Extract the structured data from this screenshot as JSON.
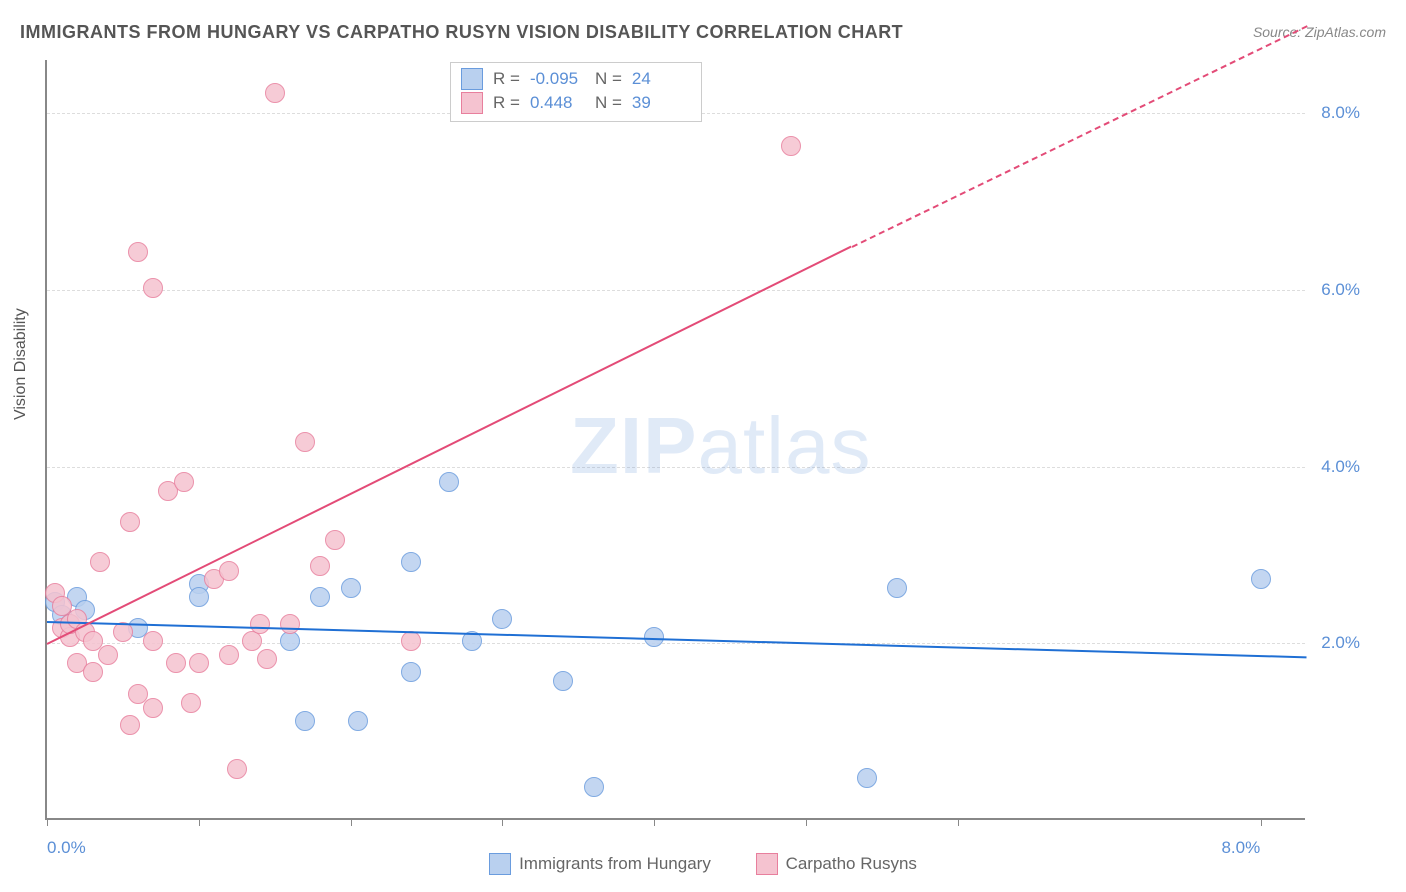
{
  "title": "IMMIGRANTS FROM HUNGARY VS CARPATHO RUSYN VISION DISABILITY CORRELATION CHART",
  "source": "Source: ZipAtlas.com",
  "y_axis_label": "Vision Disability",
  "watermark_bold": "ZIP",
  "watermark_light": "atlas",
  "chart": {
    "type": "scatter",
    "background_color": "#ffffff",
    "grid_color": "#dddddd",
    "axis_color": "#888888",
    "tick_label_color": "#5b8fd6",
    "xlim": [
      0,
      8.3
    ],
    "ylim": [
      0,
      8.6
    ],
    "y_ticks": [
      {
        "v": 2.0,
        "label": "2.0%"
      },
      {
        "v": 4.0,
        "label": "4.0%"
      },
      {
        "v": 6.0,
        "label": "6.0%"
      },
      {
        "v": 8.0,
        "label": "8.0%"
      }
    ],
    "x_ticks": [
      {
        "v": 0.0,
        "label": "0.0%"
      },
      {
        "v": 1.0,
        "label": ""
      },
      {
        "v": 2.0,
        "label": ""
      },
      {
        "v": 3.0,
        "label": ""
      },
      {
        "v": 4.0,
        "label": ""
      },
      {
        "v": 5.0,
        "label": ""
      },
      {
        "v": 6.0,
        "label": ""
      },
      {
        "v": 8.0,
        "label": "8.0%"
      }
    ],
    "point_radius": 10,
    "series": [
      {
        "name": "Immigrants from Hungary",
        "fill": "#b9d0ef",
        "stroke": "#6a9cde",
        "trend_color": "#1f6fd4",
        "trend": {
          "x1": 0.0,
          "y1": 2.25,
          "x2": 8.3,
          "y2": 1.85,
          "dashed_after_x": 8.3
        },
        "r_value": "-0.095",
        "n_value": "24",
        "points": [
          [
            0.05,
            2.45
          ],
          [
            0.1,
            2.3
          ],
          [
            0.15,
            2.2
          ],
          [
            0.2,
            2.5
          ],
          [
            0.25,
            2.35
          ],
          [
            0.6,
            2.15
          ],
          [
            1.0,
            2.65
          ],
          [
            1.0,
            2.5
          ],
          [
            1.6,
            2.0
          ],
          [
            1.7,
            1.1
          ],
          [
            1.8,
            2.5
          ],
          [
            2.0,
            2.6
          ],
          [
            2.05,
            1.1
          ],
          [
            2.4,
            2.9
          ],
          [
            2.4,
            1.65
          ],
          [
            2.65,
            3.8
          ],
          [
            2.8,
            2.0
          ],
          [
            3.0,
            2.25
          ],
          [
            3.4,
            1.55
          ],
          [
            3.6,
            0.35
          ],
          [
            4.0,
            2.05
          ],
          [
            5.4,
            0.45
          ],
          [
            5.6,
            2.6
          ],
          [
            8.0,
            2.7
          ]
        ]
      },
      {
        "name": "Carpatho Rusyns",
        "fill": "#f5c3d0",
        "stroke": "#e87f9d",
        "trend_color": "#e34b77",
        "trend": {
          "x1": 0.0,
          "y1": 2.0,
          "x2": 5.3,
          "y2": 6.5,
          "dashed_after_x": 5.3,
          "x3": 8.3,
          "y3": 9.0
        },
        "r_value": "0.448",
        "n_value": "39",
        "points": [
          [
            0.05,
            2.55
          ],
          [
            0.1,
            2.4
          ],
          [
            0.1,
            2.15
          ],
          [
            0.15,
            2.05
          ],
          [
            0.15,
            2.2
          ],
          [
            0.2,
            1.75
          ],
          [
            0.2,
            2.25
          ],
          [
            0.25,
            2.1
          ],
          [
            0.3,
            2.0
          ],
          [
            0.3,
            1.65
          ],
          [
            0.35,
            2.9
          ],
          [
            0.4,
            1.85
          ],
          [
            0.5,
            2.1
          ],
          [
            0.55,
            3.35
          ],
          [
            0.55,
            1.05
          ],
          [
            0.6,
            1.4
          ],
          [
            0.6,
            6.4
          ],
          [
            0.7,
            6.0
          ],
          [
            0.7,
            2.0
          ],
          [
            0.7,
            1.25
          ],
          [
            0.8,
            3.7
          ],
          [
            0.85,
            1.75
          ],
          [
            0.9,
            3.8
          ],
          [
            0.95,
            1.3
          ],
          [
            1.0,
            1.75
          ],
          [
            1.1,
            2.7
          ],
          [
            1.2,
            2.8
          ],
          [
            1.2,
            1.85
          ],
          [
            1.25,
            0.55
          ],
          [
            1.35,
            2.0
          ],
          [
            1.4,
            2.2
          ],
          [
            1.45,
            1.8
          ],
          [
            1.5,
            8.2
          ],
          [
            1.6,
            2.2
          ],
          [
            1.7,
            4.25
          ],
          [
            1.8,
            2.85
          ],
          [
            1.9,
            3.15
          ],
          [
            2.4,
            2.0
          ],
          [
            4.9,
            7.6
          ]
        ]
      }
    ]
  },
  "stats_legend_labels": {
    "r": "R =",
    "n": "N ="
  },
  "bottom_legend": {
    "label1": "Immigrants from Hungary",
    "label2": "Carpatho Rusyns"
  }
}
